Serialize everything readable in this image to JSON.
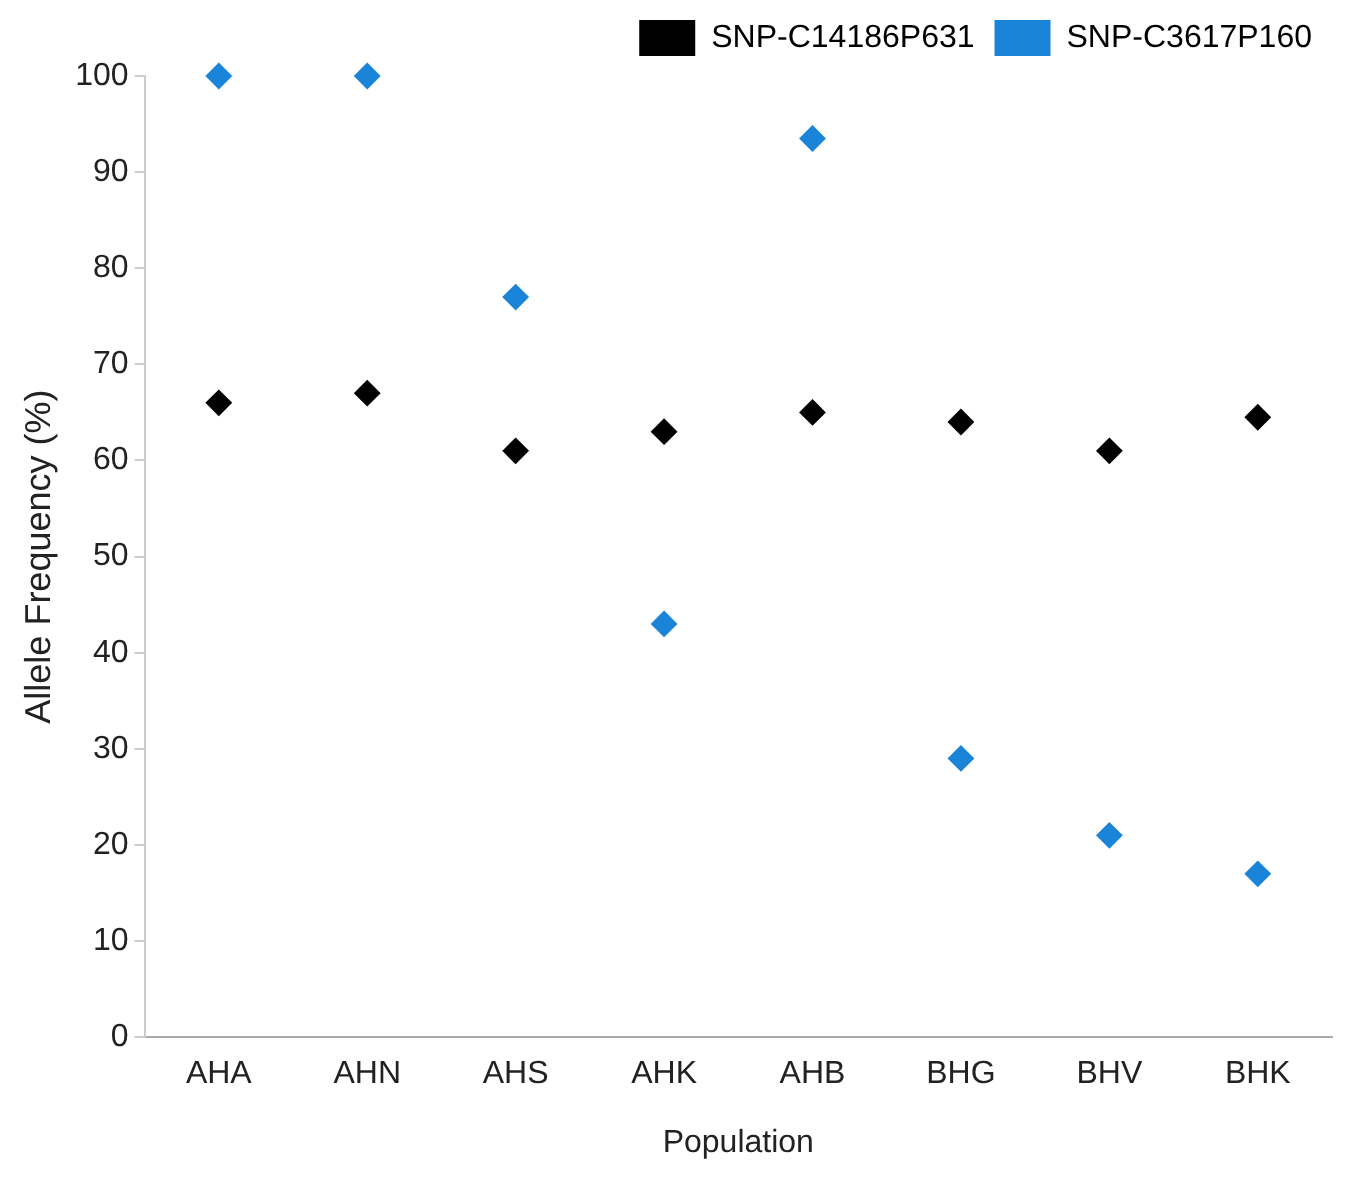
{
  "chart_data": {
    "type": "scatter",
    "xlabel": "Population",
    "ylabel": "Allele Frequency (%)",
    "categories": [
      "AHA",
      "AHN",
      "AHS",
      "AHK",
      "AHB",
      "BHG",
      "BHV",
      "BHK"
    ],
    "series": [
      {
        "name": "SNP-C14186P631",
        "color": "#000000",
        "values": [
          66,
          67,
          61,
          63,
          65,
          64,
          61,
          64.5
        ]
      },
      {
        "name": "SNP-C3617P160",
        "color": "#1a84d8",
        "values": [
          100,
          100,
          77,
          43,
          93.5,
          29,
          21,
          17
        ]
      }
    ],
    "ylim": [
      0,
      100
    ],
    "yticks": [
      0,
      10,
      20,
      30,
      40,
      50,
      60,
      70,
      80,
      90,
      100
    ],
    "grid": false,
    "legend": "top right",
    "marker": "diamond"
  }
}
